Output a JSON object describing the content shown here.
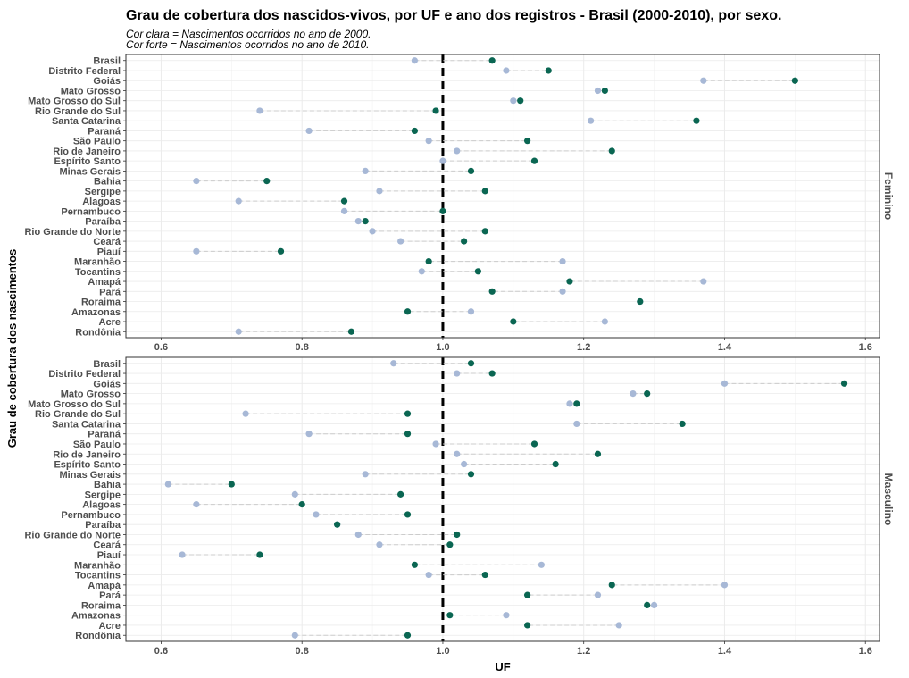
{
  "chart_data": {
    "type": "dumbbell",
    "title": "Grau de cobertura dos nascidos-vivos, por UF e ano dos registros - Brasil (2000-2010), por sexo.",
    "subtitle": [
      "Cor clara = Nascimentos ocorridos no ano de 2000.",
      "Cor forte = Nascimentos ocorridos no ano de 2010."
    ],
    "xlabel": "UF",
    "ylabel": "Grau de cobertura dos nascimentos",
    "xlim": [
      0.55,
      1.62
    ],
    "xticks": [
      "0.6",
      "0.8",
      "1.0",
      "1.2",
      "1.4",
      "1.6"
    ],
    "reference_line": 1.0,
    "colors": {
      "y2000": "#a7b8d6",
      "y2010": "#0a6652",
      "segment": "#cccccc",
      "refline": "#000000"
    },
    "categories": [
      "Brasil",
      "Distrito Federal",
      "Goiás",
      "Mato Grosso",
      "Mato Grosso do Sul",
      "Rio Grande do Sul",
      "Santa Catarina",
      "Paraná",
      "São Paulo",
      "Rio de Janeiro",
      "Espírito Santo",
      "Minas Gerais",
      "Bahia",
      "Sergipe",
      "Alagoas",
      "Pernambuco",
      "Paraíba",
      "Rio Grande do Norte",
      "Ceará",
      "Piauí",
      "Maranhão",
      "Tocantins",
      "Amapá",
      "Pará",
      "Roraima",
      "Amazonas",
      "Acre",
      "Rondônia"
    ],
    "panels": [
      {
        "strip": "Feminino",
        "y2000": [
          0.96,
          1.09,
          1.37,
          1.22,
          1.1,
          0.74,
          1.21,
          0.81,
          0.98,
          1.02,
          1.0,
          0.89,
          0.65,
          0.91,
          0.71,
          0.86,
          0.88,
          0.9,
          0.94,
          0.65,
          1.17,
          0.97,
          1.37,
          1.17,
          1.28,
          1.04,
          1.23,
          0.71
        ],
        "y2010": [
          1.07,
          1.15,
          1.5,
          1.23,
          1.11,
          0.99,
          1.36,
          0.96,
          1.12,
          1.24,
          1.13,
          1.04,
          0.75,
          1.06,
          0.86,
          1.0,
          0.89,
          1.06,
          1.03,
          0.77,
          0.98,
          1.05,
          1.18,
          1.07,
          1.28,
          0.95,
          1.1,
          0.87
        ]
      },
      {
        "strip": "Masculino",
        "y2000": [
          0.93,
          1.02,
          1.4,
          1.27,
          1.18,
          0.72,
          1.19,
          0.81,
          0.99,
          1.02,
          1.03,
          0.89,
          0.61,
          0.79,
          0.65,
          0.82,
          0.85,
          0.88,
          0.91,
          0.63,
          1.14,
          0.98,
          1.4,
          1.22,
          1.3,
          1.09,
          1.25,
          0.79
        ],
        "y2010": [
          1.04,
          1.07,
          1.57,
          1.29,
          1.19,
          0.95,
          1.34,
          0.95,
          1.13,
          1.22,
          1.16,
          1.04,
          0.7,
          0.94,
          0.8,
          0.95,
          0.85,
          1.02,
          1.01,
          0.74,
          0.96,
          1.06,
          1.24,
          1.12,
          1.29,
          1.01,
          1.12,
          0.95
        ]
      }
    ]
  }
}
